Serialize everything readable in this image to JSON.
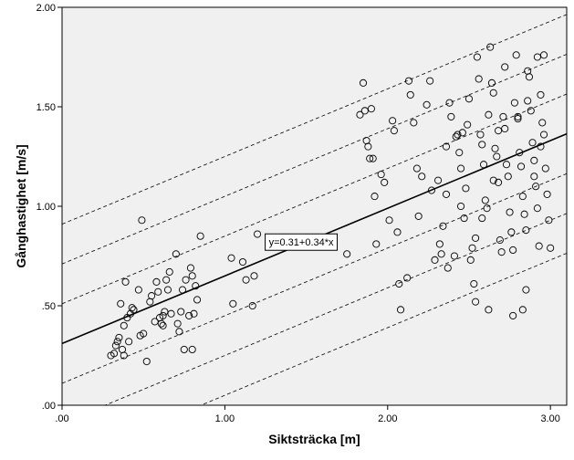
{
  "chart_data": {
    "type": "scatter",
    "xlabel": "Siktsträcka [m]",
    "ylabel": "Gånghastighet [m/s]",
    "xlim": [
      0,
      3.1
    ],
    "ylim": [
      0,
      2.0
    ],
    "xticks": [
      0,
      1,
      2,
      3
    ],
    "yticks": [
      0,
      0.5,
      1.0,
      1.5,
      2.0
    ],
    "xtick_labels": [
      ".00",
      "1.00",
      "2.00",
      "3.00"
    ],
    "ytick_labels": [
      ".00",
      ".50",
      "1.00",
      "1.50",
      "2.00"
    ],
    "grid": false,
    "legend": "none",
    "background_color": "#f0f0f0",
    "marker_color": "#000000",
    "fit_line": {
      "intercept": 0.31,
      "slope": 0.34,
      "label": "y=0.31+0.34*x",
      "label_x": 1.5
    },
    "reference_line_offsets": [
      -0.6,
      -0.4,
      -0.2,
      0.2,
      0.4,
      0.6
    ],
    "points": [
      [
        0.3,
        0.25
      ],
      [
        0.32,
        0.26
      ],
      [
        0.33,
        0.3
      ],
      [
        0.34,
        0.32
      ],
      [
        0.35,
        0.34
      ],
      [
        0.36,
        0.51
      ],
      [
        0.37,
        0.28
      ],
      [
        0.38,
        0.4
      ],
      [
        0.38,
        0.25
      ],
      [
        0.39,
        0.62
      ],
      [
        0.4,
        0.44
      ],
      [
        0.41,
        0.32
      ],
      [
        0.42,
        0.46
      ],
      [
        0.43,
        0.49
      ],
      [
        0.44,
        0.48
      ],
      [
        0.47,
        0.58
      ],
      [
        0.48,
        0.35
      ],
      [
        0.49,
        0.93
      ],
      [
        0.5,
        0.36
      ],
      [
        0.52,
        0.22
      ],
      [
        0.54,
        0.52
      ],
      [
        0.55,
        0.55
      ],
      [
        0.57,
        0.42
      ],
      [
        0.58,
        0.62
      ],
      [
        0.59,
        0.57
      ],
      [
        0.6,
        0.44
      ],
      [
        0.61,
        0.41
      ],
      [
        0.62,
        0.4
      ],
      [
        0.62,
        0.45
      ],
      [
        0.63,
        0.47
      ],
      [
        0.64,
        0.63
      ],
      [
        0.65,
        0.58
      ],
      [
        0.66,
        0.67
      ],
      [
        0.67,
        0.46
      ],
      [
        0.7,
        0.76
      ],
      [
        0.71,
        0.41
      ],
      [
        0.72,
        0.37
      ],
      [
        0.73,
        0.47
      ],
      [
        0.74,
        0.58
      ],
      [
        0.75,
        0.28
      ],
      [
        0.76,
        0.63
      ],
      [
        0.78,
        0.45
      ],
      [
        0.79,
        0.69
      ],
      [
        0.8,
        0.65
      ],
      [
        0.8,
        0.28
      ],
      [
        0.81,
        0.46
      ],
      [
        0.82,
        0.6
      ],
      [
        0.83,
        0.53
      ],
      [
        0.85,
        0.85
      ],
      [
        1.04,
        0.74
      ],
      [
        1.05,
        0.51
      ],
      [
        1.11,
        0.72
      ],
      [
        1.13,
        0.63
      ],
      [
        1.17,
        0.5
      ],
      [
        1.18,
        0.65
      ],
      [
        1.2,
        0.86
      ],
      [
        1.75,
        0.76
      ],
      [
        1.83,
        1.46
      ],
      [
        1.85,
        1.62
      ],
      [
        1.86,
        1.48
      ],
      [
        1.87,
        1.33
      ],
      [
        1.88,
        1.3
      ],
      [
        1.89,
        1.24
      ],
      [
        1.9,
        1.49
      ],
      [
        1.91,
        1.24
      ],
      [
        1.92,
        1.05
      ],
      [
        1.93,
        0.81
      ],
      [
        1.96,
        1.16
      ],
      [
        1.98,
        1.12
      ],
      [
        2.01,
        0.93
      ],
      [
        2.03,
        1.43
      ],
      [
        2.04,
        1.38
      ],
      [
        2.06,
        0.87
      ],
      [
        2.07,
        0.61
      ],
      [
        2.08,
        0.48
      ],
      [
        2.12,
        0.64
      ],
      [
        2.13,
        1.63
      ],
      [
        2.14,
        1.56
      ],
      [
        2.16,
        1.42
      ],
      [
        2.18,
        1.19
      ],
      [
        2.19,
        0.95
      ],
      [
        2.21,
        1.15
      ],
      [
        2.24,
        1.51
      ],
      [
        2.26,
        1.63
      ],
      [
        2.27,
        1.08
      ],
      [
        2.29,
        0.73
      ],
      [
        2.31,
        1.13
      ],
      [
        2.32,
        0.81
      ],
      [
        2.33,
        0.76
      ],
      [
        2.34,
        0.9
      ],
      [
        2.36,
        1.3
      ],
      [
        2.37,
        0.69
      ],
      [
        2.38,
        1.52
      ],
      [
        2.39,
        1.45
      ],
      [
        2.41,
        0.75
      ],
      [
        2.42,
        1.35
      ],
      [
        2.43,
        1.36
      ],
      [
        2.44,
        1.27
      ],
      [
        2.45,
        1.19
      ],
      [
        2.46,
        1.37
      ],
      [
        2.47,
        0.94
      ],
      [
        2.48,
        1.09
      ],
      [
        2.49,
        1.41
      ],
      [
        2.5,
        1.54
      ],
      [
        2.51,
        0.73
      ],
      [
        2.52,
        0.79
      ],
      [
        2.53,
        0.61
      ],
      [
        2.54,
        0.84
      ],
      [
        2.55,
        1.75
      ],
      [
        2.56,
        1.64
      ],
      [
        2.57,
        1.36
      ],
      [
        2.58,
        1.31
      ],
      [
        2.59,
        1.21
      ],
      [
        2.6,
        1.03
      ],
      [
        2.61,
        0.99
      ],
      [
        2.62,
        1.46
      ],
      [
        2.63,
        1.8
      ],
      [
        2.64,
        1.62
      ],
      [
        2.65,
        1.57
      ],
      [
        2.66,
        1.29
      ],
      [
        2.67,
        1.25
      ],
      [
        2.68,
        1.12
      ],
      [
        2.69,
        0.83
      ],
      [
        2.7,
        0.77
      ],
      [
        2.71,
        1.45
      ],
      [
        2.72,
        1.39
      ],
      [
        2.73,
        1.21
      ],
      [
        2.74,
        1.15
      ],
      [
        2.75,
        0.97
      ],
      [
        2.76,
        0.87
      ],
      [
        2.77,
        0.78
      ],
      [
        2.78,
        1.52
      ],
      [
        2.79,
        1.76
      ],
      [
        2.8,
        1.44
      ],
      [
        2.81,
        1.27
      ],
      [
        2.82,
        1.2
      ],
      [
        2.83,
        1.05
      ],
      [
        2.84,
        0.96
      ],
      [
        2.85,
        0.88
      ],
      [
        2.86,
        1.68
      ],
      [
        2.87,
        1.65
      ],
      [
        2.88,
        1.48
      ],
      [
        2.89,
        1.32
      ],
      [
        2.9,
        1.23
      ],
      [
        2.91,
        1.1
      ],
      [
        2.92,
        0.99
      ],
      [
        2.93,
        0.8
      ],
      [
        2.94,
        1.56
      ],
      [
        2.95,
        1.42
      ],
      [
        2.96,
        1.36
      ],
      [
        2.97,
        1.19
      ],
      [
        2.98,
        1.06
      ],
      [
        2.99,
        0.93
      ],
      [
        3.0,
        0.79
      ],
      [
        2.96,
        1.76
      ],
      [
        2.94,
        1.3
      ],
      [
        2.83,
        0.48
      ],
      [
        2.77,
        0.45
      ],
      [
        2.62,
        0.48
      ],
      [
        2.54,
        0.52
      ],
      [
        2.85,
        0.58
      ],
      [
        2.9,
        1.15
      ],
      [
        2.72,
        1.7
      ],
      [
        2.68,
        1.38
      ],
      [
        2.58,
        0.94
      ],
      [
        2.36,
        1.06
      ],
      [
        2.45,
        1.0
      ],
      [
        2.65,
        1.13
      ],
      [
        2.8,
        1.45
      ],
      [
        2.92,
        1.75
      ],
      [
        2.86,
        1.53
      ]
    ]
  }
}
